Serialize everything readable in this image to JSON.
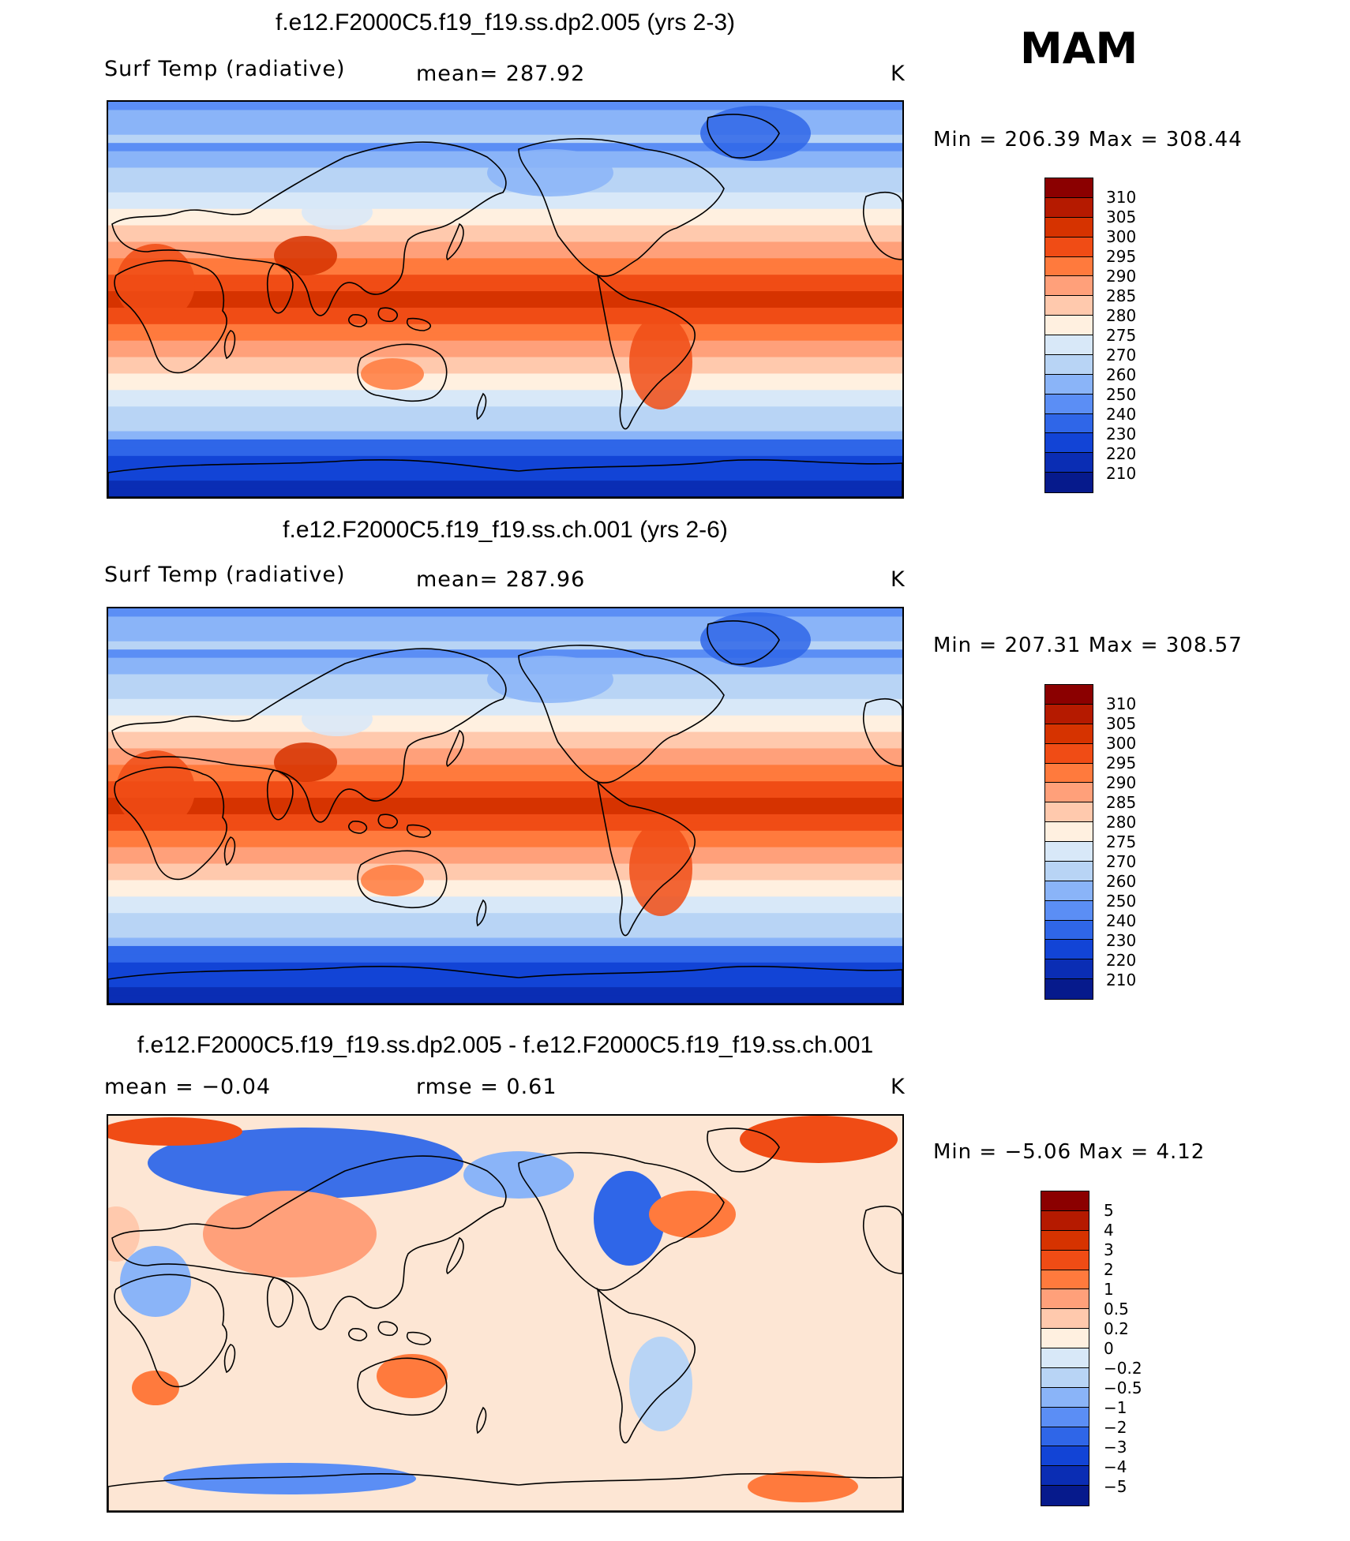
{
  "season": "MAM",
  "panels": [
    {
      "title": "f.e12.F2000C5.f19_f19.ss.dp2.005 (yrs 2-3)",
      "left_text": "Surf Temp (radiative)",
      "center_text": "mean= 287.92",
      "units": "K",
      "minmax": "Min = 206.39 Max = 308.44",
      "colorbar": {
        "labels": [
          "310",
          "305",
          "300",
          "295",
          "290",
          "285",
          "280",
          "275",
          "270",
          "260",
          "250",
          "240",
          "230",
          "220",
          "210"
        ],
        "colors": [
          "#8b0000",
          "#b51a00",
          "#d63300",
          "#f04c15",
          "#ff7a3d",
          "#ffa07a",
          "#ffc9ad",
          "#fff0e0",
          "#d8e8f8",
          "#b8d4f5",
          "#8ab4f8",
          "#5b8ef5",
          "#2f66e8",
          "#1244d6",
          "#0a2db4",
          "#061a8c"
        ]
      },
      "field": "temperature",
      "mean": 287.92
    },
    {
      "title": "f.e12.F2000C5.f19_f19.ss.ch.001 (yrs 2-6)",
      "left_text": "Surf Temp (radiative)",
      "center_text": "mean= 287.96",
      "units": "K",
      "minmax": "Min = 207.31 Max = 308.57",
      "colorbar": {
        "labels": [
          "310",
          "305",
          "300",
          "295",
          "290",
          "285",
          "280",
          "275",
          "270",
          "260",
          "250",
          "240",
          "230",
          "220",
          "210"
        ],
        "colors": [
          "#8b0000",
          "#b51a00",
          "#d63300",
          "#f04c15",
          "#ff7a3d",
          "#ffa07a",
          "#ffc9ad",
          "#fff0e0",
          "#d8e8f8",
          "#b8d4f5",
          "#8ab4f8",
          "#5b8ef5",
          "#2f66e8",
          "#1244d6",
          "#0a2db4",
          "#061a8c"
        ]
      },
      "field": "temperature",
      "mean": 287.96
    },
    {
      "title": "f.e12.F2000C5.f19_f19.ss.dp2.005 - f.e12.F2000C5.f19_f19.ss.ch.001",
      "left_text": "mean = −0.04",
      "center_text": "rmse = 0.61",
      "units": "K",
      "minmax": "Min = −5.06 Max = 4.12",
      "colorbar": {
        "labels": [
          "5",
          "4",
          "3",
          "2",
          "1",
          "0.5",
          "0.2",
          "0",
          "−0.2",
          "−0.5",
          "−1",
          "−2",
          "−3",
          "−4",
          "−5"
        ],
        "colors": [
          "#8b0000",
          "#b51a00",
          "#d63300",
          "#f04c15",
          "#ff7a3d",
          "#ffa07a",
          "#ffc9ad",
          "#fff0e0",
          "#d8e8f8",
          "#b8d4f5",
          "#8ab4f8",
          "#5b8ef5",
          "#2f66e8",
          "#1244d6",
          "#0a2db4",
          "#061a8c"
        ]
      },
      "field": "difference",
      "mean": -0.04,
      "rmse": 0.61
    }
  ]
}
